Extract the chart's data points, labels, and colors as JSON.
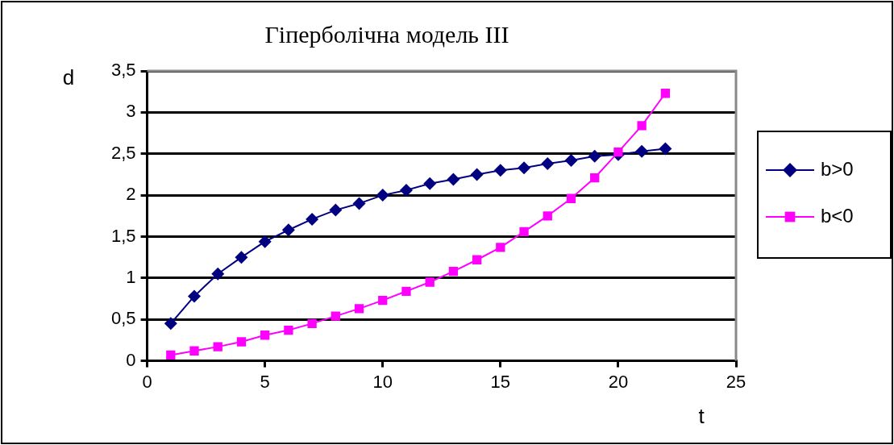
{
  "chart_data": {
    "type": "line",
    "title": "Гіперболічна модель III",
    "xlabel": "t",
    "ylabel": "d",
    "x": [
      1,
      2,
      3,
      4,
      5,
      6,
      7,
      8,
      9,
      10,
      11,
      12,
      13,
      14,
      15,
      16,
      17,
      18,
      19,
      20,
      21,
      22
    ],
    "series": [
      {
        "name": "b>0",
        "color": "#000080",
        "marker": "diamond",
        "values": [
          0.45,
          0.78,
          1.05,
          1.25,
          1.44,
          1.58,
          1.71,
          1.82,
          1.9,
          2.0,
          2.06,
          2.14,
          2.19,
          2.25,
          2.3,
          2.33,
          2.38,
          2.42,
          2.47,
          2.49,
          2.53,
          2.56
        ]
      },
      {
        "name": "b<0",
        "color": "#ff00ff",
        "marker": "square",
        "values": [
          0.07,
          0.12,
          0.17,
          0.23,
          0.31,
          0.37,
          0.45,
          0.54,
          0.63,
          0.73,
          0.84,
          0.95,
          1.08,
          1.22,
          1.37,
          1.56,
          1.75,
          1.96,
          2.21,
          2.52,
          2.84,
          3.23
        ]
      }
    ],
    "xlim": [
      0,
      25
    ],
    "xticks": [
      0,
      5,
      10,
      15,
      20,
      25
    ],
    "ylim": [
      0,
      3.5
    ],
    "yticks": [
      0,
      {
        "value": 0.5,
        "label": "0,5"
      },
      1,
      {
        "value": 1.5,
        "label": "1,5"
      },
      2,
      {
        "value": 2.5,
        "label": "2,5"
      },
      3,
      {
        "value": 3.5,
        "label": "3,5"
      }
    ],
    "grid": "y",
    "legend": "right",
    "line_style": "solid"
  }
}
